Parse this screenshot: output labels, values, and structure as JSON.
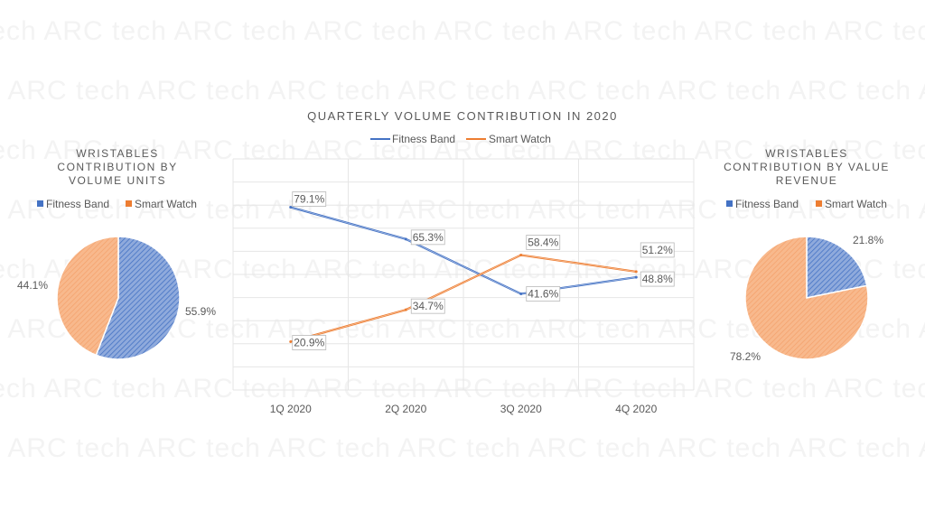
{
  "watermark": {
    "text": "tech ARC"
  },
  "colors": {
    "fitness_band": "#4472c4",
    "smart_watch": "#ed7d31",
    "text": "#595959",
    "grid": "#e3e3e3"
  },
  "chart_data": [
    {
      "type": "pie",
      "id": "left_pie",
      "title_lines": [
        "WRISTABLES",
        "CONTRIBUTION BY",
        "VOLUME UNITS"
      ],
      "legend": [
        "Fitness Band",
        "Smart Watch"
      ],
      "categories": [
        "Fitness Band",
        "Smart Watch"
      ],
      "values": [
        55.9,
        44.1
      ],
      "labels": [
        "55.9%",
        "44.1%"
      ]
    },
    {
      "type": "line",
      "id": "line_chart",
      "title": "QUARTERLY VOLUME CONTRIBUTION IN 2020",
      "categories": [
        "1Q 2020",
        "2Q 2020",
        "3Q 2020",
        "4Q 2020"
      ],
      "ylim": [
        0,
        100
      ],
      "grid": true,
      "legend_position": "top",
      "series": [
        {
          "name": "Fitness Band",
          "values": [
            79.1,
            65.3,
            41.6,
            48.8
          ],
          "labels": [
            "79.1%",
            "65.3%",
            "41.6%",
            "48.8%"
          ]
        },
        {
          "name": "Smart Watch",
          "values": [
            20.9,
            34.7,
            58.4,
            51.2
          ],
          "labels": [
            "20.9%",
            "34.7%",
            "58.4%",
            "51.2%"
          ]
        }
      ]
    },
    {
      "type": "pie",
      "id": "right_pie",
      "title_lines": [
        "WRISTABLES",
        "CONTRIBUTION BY VALUE",
        "REVENUE"
      ],
      "legend": [
        "Fitness Band",
        "Smart Watch"
      ],
      "categories": [
        "Fitness Band",
        "Smart Watch"
      ],
      "values": [
        21.8,
        78.2
      ],
      "labels": [
        "21.8%",
        "78.2%"
      ]
    }
  ]
}
